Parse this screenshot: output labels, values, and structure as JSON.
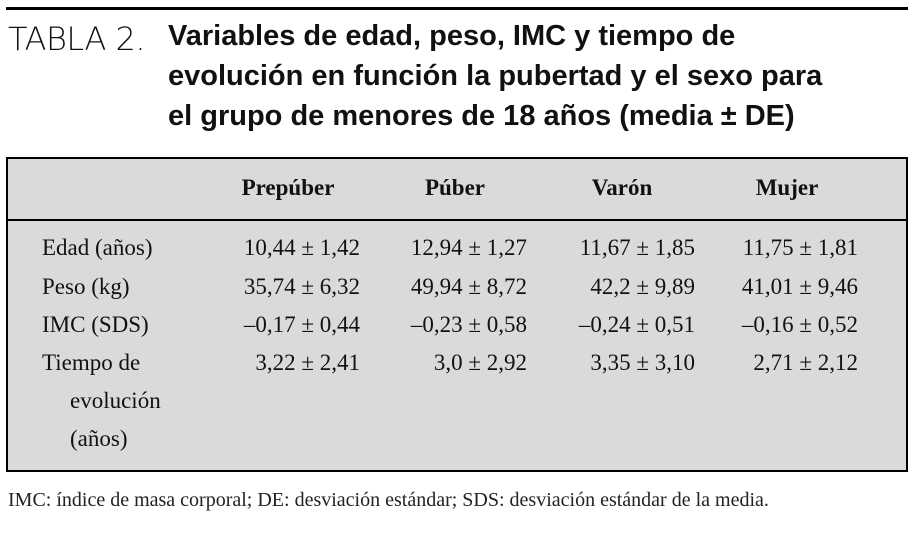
{
  "header": {
    "label": "TABLA 2.",
    "title_lines": [
      "Variables de edad, peso, IMC y tiempo de",
      "evolución en función la pubertad y el sexo para",
      "el grupo de menores de 18 años (media ± DE)"
    ]
  },
  "table": {
    "columns": [
      "Prepúber",
      "Púber",
      "Varón",
      "Mujer"
    ],
    "rows": [
      {
        "label": [
          "Edad (años)"
        ],
        "cells": [
          "10,44 ± 1,42",
          "12,94 ± 1,27",
          "11,67 ± 1,85",
          "11,75 ± 1,81"
        ]
      },
      {
        "label": [
          "Peso (kg)"
        ],
        "cells": [
          "35,74 ± 6,32",
          "49,94 ± 8,72",
          "42,2 ± 9,89",
          "41,01 ± 9,46"
        ]
      },
      {
        "label": [
          "IMC (SDS)"
        ],
        "cells": [
          "–0,17 ± 0,44",
          "–0,23 ± 0,58",
          "–0,24 ± 0,51",
          "–0,16 ± 0,52"
        ]
      },
      {
        "label": [
          "Tiempo de",
          "evolución",
          "(años)"
        ],
        "cells": [
          "3,22 ± 2,41",
          "3,0 ± 2,92",
          "3,35 ± 3,10",
          "2,71 ± 2,12"
        ]
      }
    ]
  },
  "footnote": "IMC: índice de masa corporal; DE: desviación estándar; SDS: desviación estándar de la media."
}
